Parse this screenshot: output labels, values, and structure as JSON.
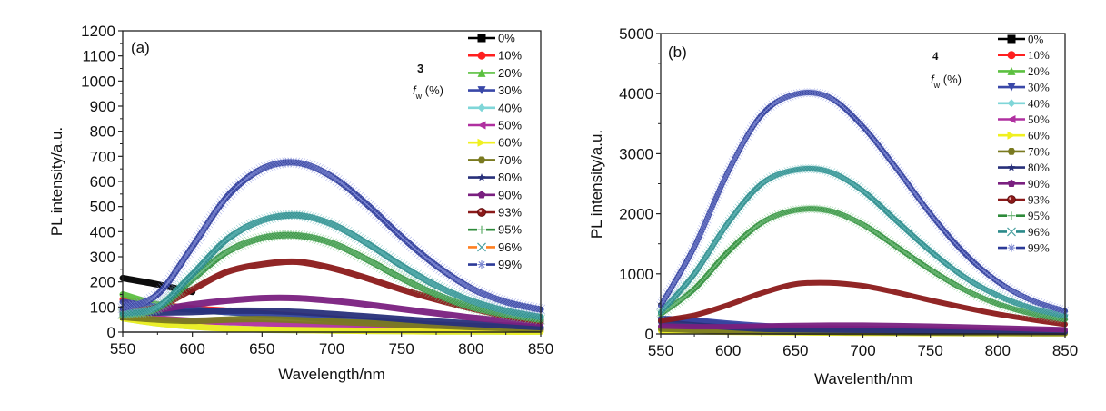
{
  "chart_data": [
    {
      "id": "a",
      "type": "line",
      "panel_label": "(a)",
      "compound": "3",
      "legend_title": "f_w (%)",
      "legend_title_main": "f",
      "legend_title_sub": "w",
      "legend_title_rest": " (%)",
      "xlabel": "Wavelength/nm",
      "ylabel": "PL intensity/a.u.",
      "xlim": [
        550,
        850
      ],
      "ylim": [
        0,
        1200
      ],
      "xticks": [
        550,
        600,
        650,
        700,
        750,
        800,
        850
      ],
      "yticks": [
        0,
        100,
        200,
        300,
        400,
        500,
        600,
        700,
        800,
        900,
        1000,
        1100,
        1200
      ],
      "grid": false,
      "legend_position": "top-right",
      "x": [
        550,
        575,
        600,
        625,
        650,
        675,
        700,
        725,
        750,
        775,
        800,
        825,
        850
      ],
      "series": [
        {
          "name": "0%",
          "color": "#000000",
          "marker": "square",
          "values": [
            215,
            190,
            160,
            null,
            null,
            null,
            null,
            null,
            null,
            null,
            null,
            null,
            null
          ]
        },
        {
          "name": "10%",
          "color": "#ff2020",
          "marker": "circle",
          "values": [
            130,
            110,
            95,
            85,
            75,
            65,
            55,
            45,
            38,
            30,
            25,
            20,
            15
          ]
        },
        {
          "name": "20%",
          "color": "#5cc040",
          "marker": "triangle-up",
          "values": [
            150,
            110,
            90,
            80,
            70,
            60,
            50,
            42,
            35,
            28,
            22,
            18,
            14
          ]
        },
        {
          "name": "30%",
          "color": "#3a48a8",
          "marker": "triangle-down",
          "values": [
            120,
            100,
            90,
            80,
            72,
            62,
            52,
            44,
            36,
            28,
            22,
            18,
            14
          ]
        },
        {
          "name": "40%",
          "color": "#7fd6d8",
          "marker": "diamond",
          "values": [
            55,
            35,
            22,
            15,
            10,
            8,
            6,
            5,
            4,
            3,
            3,
            2,
            2
          ]
        },
        {
          "name": "50%",
          "color": "#b030a0",
          "marker": "triangle-left",
          "values": [
            70,
            55,
            45,
            40,
            35,
            30,
            26,
            22,
            18,
            15,
            12,
            10,
            8
          ]
        },
        {
          "name": "60%",
          "color": "#f0f020",
          "marker": "triangle-right",
          "values": [
            55,
            35,
            22,
            14,
            10,
            8,
            6,
            5,
            4,
            3,
            3,
            2,
            2
          ]
        },
        {
          "name": "70%",
          "color": "#7a7a20",
          "marker": "hexagon",
          "values": [
            60,
            50,
            45,
            50,
            52,
            48,
            42,
            36,
            30,
            25,
            20,
            16,
            12
          ]
        },
        {
          "name": "80%",
          "color": "#28307a",
          "marker": "star",
          "values": [
            80,
            78,
            80,
            85,
            85,
            80,
            72,
            62,
            52,
            42,
            34,
            26,
            20
          ]
        },
        {
          "name": "90%",
          "color": "#7a2080",
          "marker": "pentagon",
          "values": [
            85,
            90,
            110,
            125,
            135,
            135,
            125,
            110,
            92,
            75,
            58,
            45,
            35
          ]
        },
        {
          "name": "93%",
          "color": "#8b1a1a",
          "marker": "sphere",
          "values": [
            80,
            100,
            170,
            240,
            270,
            280,
            255,
            215,
            170,
            130,
            95,
            65,
            45
          ]
        },
        {
          "name": "95%",
          "color": "#2e8b3a",
          "marker": "plus",
          "values": [
            70,
            95,
            210,
            320,
            375,
            385,
            355,
            290,
            215,
            150,
            100,
            70,
            50
          ]
        },
        {
          "name": "96%",
          "color": "#2a8a8a",
          "marker": "x",
          "values": [
            75,
            100,
            230,
            370,
            445,
            465,
            430,
            355,
            265,
            185,
            125,
            85,
            60
          ]
        },
        {
          "name": "99%",
          "color": "#2c3a98",
          "marker": "asterisk",
          "values": [
            95,
            150,
            340,
            540,
            650,
            675,
            620,
            510,
            380,
            265,
            175,
            120,
            90
          ]
        }
      ]
    },
    {
      "id": "b",
      "type": "line",
      "panel_label": "(b)",
      "compound": "4",
      "legend_title": "f_w (%)",
      "legend_title_main": "f",
      "legend_title_sub": "w",
      "legend_title_rest": " (%)",
      "xlabel": "Wavelenth/nm",
      "ylabel": "PL intensity/a.u.",
      "xlim": [
        550,
        850
      ],
      "ylim": [
        0,
        5000
      ],
      "xticks": [
        550,
        600,
        650,
        700,
        750,
        800,
        850
      ],
      "yticks": [
        0,
        1000,
        2000,
        3000,
        4000,
        5000
      ],
      "grid": false,
      "legend_position": "top-right",
      "x": [
        550,
        575,
        600,
        625,
        650,
        675,
        700,
        725,
        750,
        775,
        800,
        825,
        850
      ],
      "series": [
        {
          "name": "0%",
          "color": "#000000",
          "marker": "square",
          "values": [
            250,
            220,
            160,
            110,
            80,
            60,
            45,
            35,
            28,
            22,
            18,
            15,
            12
          ]
        },
        {
          "name": "10%",
          "color": "#ff2020",
          "marker": "circle",
          "values": [
            100,
            80,
            60,
            50,
            45,
            40,
            35,
            30,
            25,
            20,
            17,
            14,
            12
          ]
        },
        {
          "name": "20%",
          "color": "#5cc040",
          "marker": "triangle-up",
          "values": [
            90,
            70,
            55,
            45,
            40,
            35,
            30,
            26,
            22,
            18,
            15,
            12,
            10
          ]
        },
        {
          "name": "30%",
          "color": "#3a48a8",
          "marker": "triangle-down",
          "values": [
            260,
            230,
            180,
            140,
            110,
            90,
            75,
            62,
            52,
            44,
            36,
            30,
            25
          ]
        },
        {
          "name": "40%",
          "color": "#7fd6d8",
          "marker": "diamond",
          "values": [
            60,
            45,
            35,
            28,
            24,
            20,
            17,
            14,
            12,
            10,
            8,
            7,
            6
          ]
        },
        {
          "name": "50%",
          "color": "#b030a0",
          "marker": "triangle-left",
          "values": [
            120,
            110,
            105,
            100,
            100,
            98,
            92,
            85,
            78,
            70,
            62,
            55,
            48
          ]
        },
        {
          "name": "60%",
          "color": "#f0f020",
          "marker": "triangle-right",
          "values": [
            50,
            38,
            28,
            22,
            18,
            15,
            12,
            10,
            8,
            7,
            6,
            5,
            4
          ]
        },
        {
          "name": "70%",
          "color": "#7a7a20",
          "marker": "hexagon",
          "values": [
            80,
            60,
            45,
            35,
            30,
            26,
            22,
            18,
            15,
            12,
            10,
            8,
            7
          ]
        },
        {
          "name": "80%",
          "color": "#28307a",
          "marker": "star",
          "values": [
            200,
            150,
            110,
            80,
            70,
            65,
            60,
            55,
            50,
            45,
            40,
            35,
            30
          ]
        },
        {
          "name": "90%",
          "color": "#7a2080",
          "marker": "pentagon",
          "values": [
            130,
            120,
            120,
            130,
            140,
            145,
            145,
            138,
            128,
            115,
            100,
            85,
            70
          ]
        },
        {
          "name": "93%",
          "color": "#8b1a1a",
          "marker": "sphere",
          "values": [
            220,
            310,
            480,
            680,
            830,
            850,
            800,
            690,
            560,
            440,
            330,
            240,
            160
          ]
        },
        {
          "name": "95%",
          "color": "#2e8b3a",
          "marker": "plus",
          "values": [
            330,
            750,
            1370,
            1850,
            2060,
            2050,
            1820,
            1450,
            1070,
            740,
            500,
            340,
            240
          ]
        },
        {
          "name": "96%",
          "color": "#2a8a8a",
          "marker": "x",
          "values": [
            360,
            1000,
            1850,
            2500,
            2730,
            2700,
            2380,
            1880,
            1380,
            950,
            640,
            430,
            300
          ]
        },
        {
          "name": "99%",
          "color": "#2c3a98",
          "marker": "asterisk",
          "values": [
            470,
            1450,
            2700,
            3650,
            3990,
            3940,
            3450,
            2750,
            2000,
            1350,
            870,
            560,
            380
          ]
        }
      ]
    }
  ]
}
